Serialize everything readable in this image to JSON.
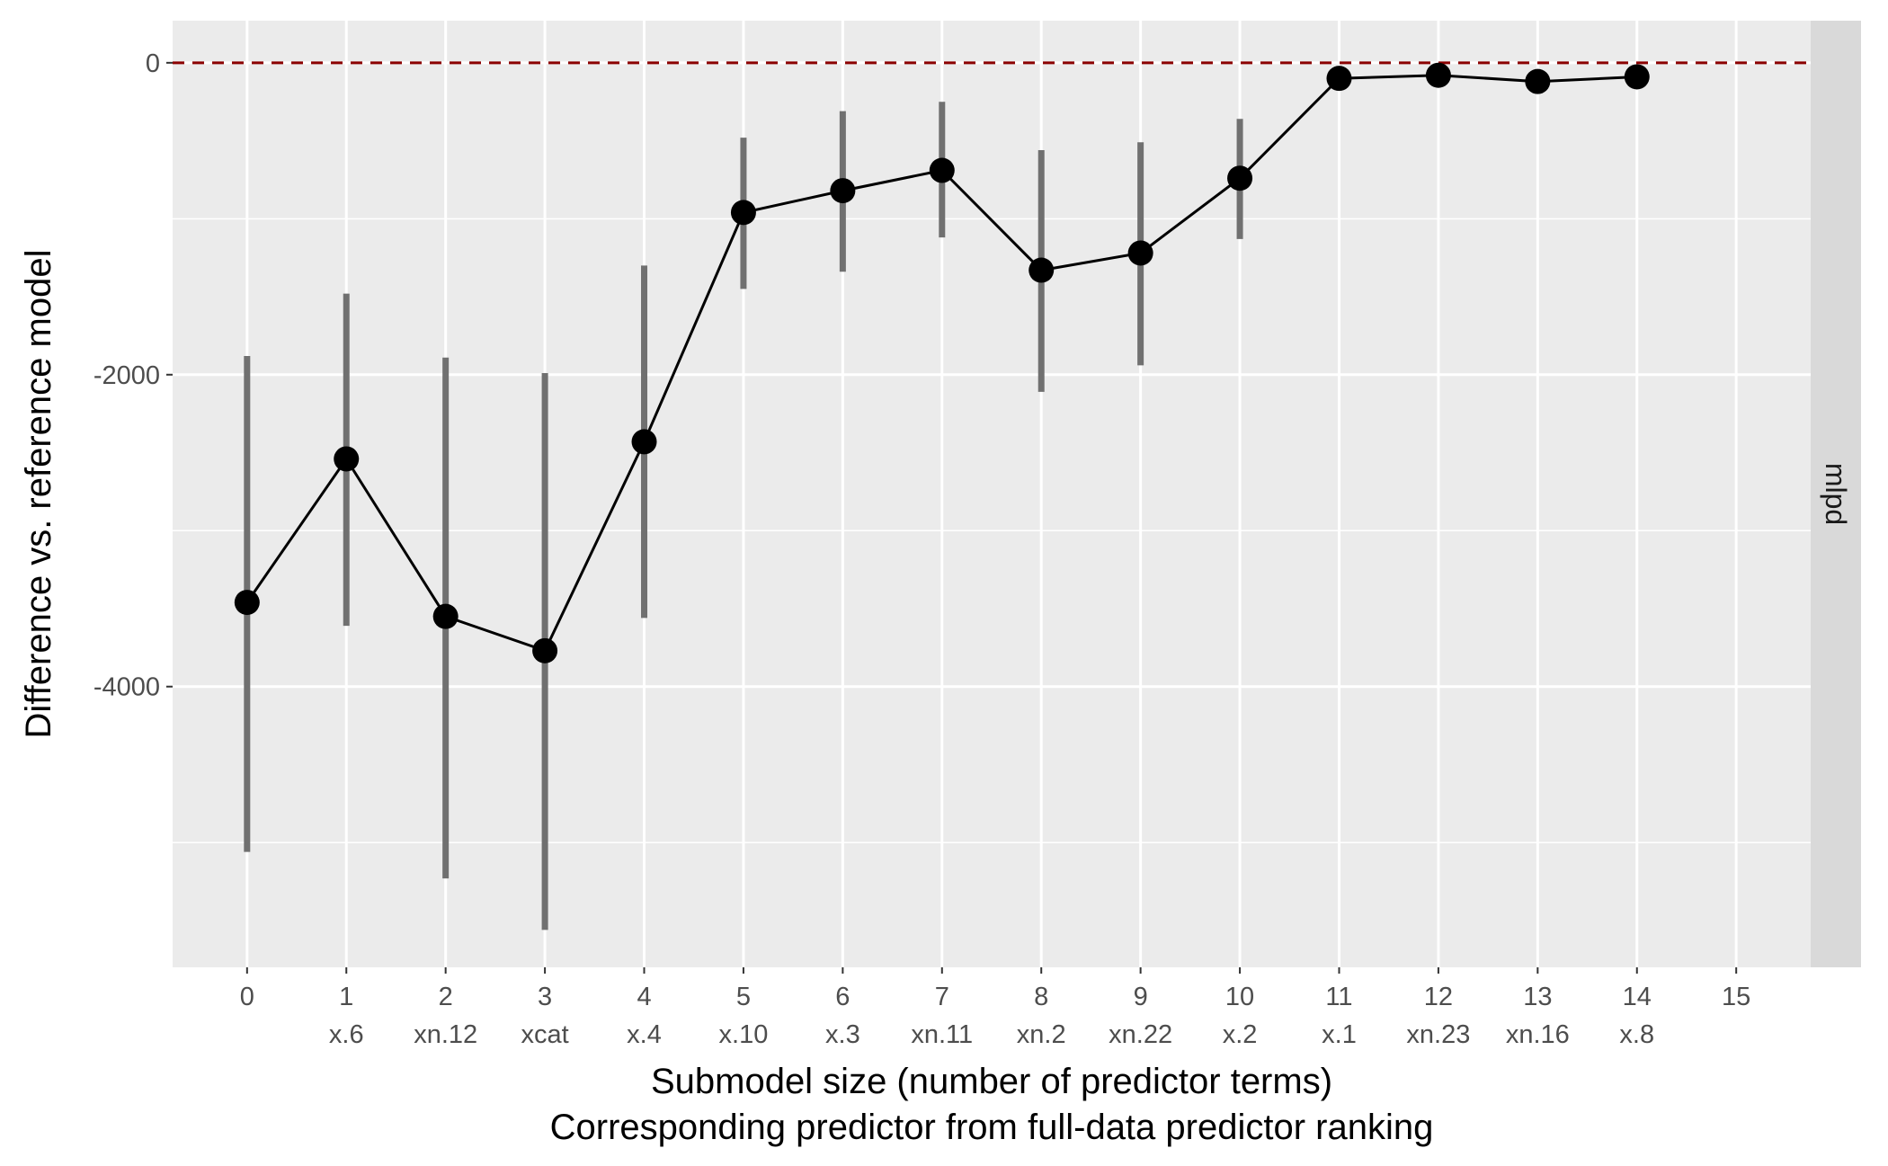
{
  "chart_data": {
    "type": "line",
    "xlabel": "Submodel size (number of predictor terms)",
    "xlabel2": "Corresponding predictor from full-data predictor ranking",
    "ylabel": "Difference vs. reference model",
    "facet_label": "mlpd",
    "x_ticks": [
      "0",
      "1",
      "2",
      "3",
      "4",
      "5",
      "6",
      "7",
      "8",
      "9",
      "10",
      "11",
      "12",
      "13",
      "14",
      "15"
    ],
    "x_predictors": [
      "",
      "x.6",
      "xn.12",
      "xcat",
      "x.4",
      "x.10",
      "x.3",
      "xn.11",
      "xn.2",
      "xn.22",
      "x.2",
      "x.1",
      "xn.23",
      "xn.16",
      "x.8",
      ""
    ],
    "y_ticks": [
      0,
      -2000,
      -4000
    ],
    "y_tick_labels": [
      "0",
      "-2000",
      "-4000"
    ],
    "y_minor_gridlines": [
      -1000,
      -3000,
      -5000
    ],
    "xlim": [
      -0.75,
      15.75
    ],
    "ylim": [
      -5800,
      270
    ],
    "reference_line": {
      "y": 0,
      "color": "#8b0000",
      "style": "dashed"
    },
    "series": [
      {
        "x": [
          0,
          1,
          2,
          3,
          4,
          5,
          6,
          7,
          8,
          9,
          10,
          11,
          12,
          13,
          14
        ],
        "y": [
          -3460,
          -2540,
          -3550,
          -3770,
          -2430,
          -960,
          -820,
          -690,
          -1330,
          -1220,
          -740,
          -100,
          -80,
          -120,
          -90
        ],
        "lower": [
          -5060,
          -3610,
          -5230,
          -5560,
          -3560,
          -1450,
          -1340,
          -1120,
          -2110,
          -1940,
          -1130,
          null,
          null,
          null,
          null
        ],
        "upper": [
          -1880,
          -1480,
          -1890,
          -1990,
          -1300,
          -480,
          -310,
          -250,
          -560,
          -510,
          -360,
          null,
          null,
          null,
          null
        ]
      }
    ],
    "colors": {
      "panel_background": "#ebebeb",
      "grid": "#ffffff",
      "strip_background": "#d9d9d9",
      "line": "#000000",
      "points": "#000000",
      "error_bars": "#707070"
    },
    "grid": true,
    "legend": "none"
  }
}
